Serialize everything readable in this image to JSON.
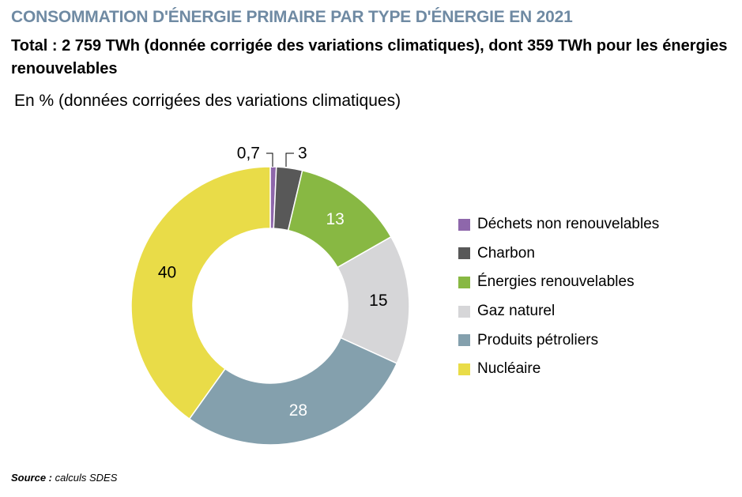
{
  "header": {
    "title": "CONSOMMATION D'ÉNERGIE PRIMAIRE PAR TYPE D'ÉNERGIE EN 2021",
    "subtitle": "Total : 2 759 TWh (donnée corrigée des variations climatiques), dont 359 TWh pour les énergies renouvelables",
    "unit_note": "En % (données corrigées des variations climatiques)"
  },
  "colors": {
    "title": "#6f8aa3",
    "ring_gap": "#ffffff",
    "leader_line": "#000000"
  },
  "chart_data": {
    "type": "pie",
    "variant": "donut",
    "title": "CONSOMMATION D'ÉNERGIE PRIMAIRE PAR TYPE D'ÉNERGIE EN 2021",
    "subtitle": "Total : 2 759 TWh (donnée corrigée des variations climatiques), dont 359 TWh pour les énergies renouvelables",
    "unit": "En % (données corrigées des variations climatiques)",
    "legend_position": "right",
    "start": "top, clockwise",
    "slices": [
      {
        "name": "Déchets non renouvelables",
        "value": 0.7,
        "label": "0,7",
        "color": "#8e67ab",
        "label_color": "#000000",
        "label_placement": "outside"
      },
      {
        "name": "Charbon",
        "value": 3,
        "label": "3",
        "color": "#585858",
        "label_color": "#000000",
        "label_placement": "outside"
      },
      {
        "name": "Énergies renouvelables",
        "value": 13,
        "label": "13",
        "color": "#88b843",
        "label_color": "#ffffff",
        "label_placement": "inside"
      },
      {
        "name": "Gaz naturel",
        "value": 15,
        "label": "15",
        "color": "#d6d6d8",
        "label_color": "#000000",
        "label_placement": "inside"
      },
      {
        "name": "Produits pétroliers",
        "value": 28,
        "label": "28",
        "color": "#84a0ad",
        "label_color": "#ffffff",
        "label_placement": "inside"
      },
      {
        "name": "Nucléaire",
        "value": 40,
        "label": "40",
        "color": "#e9dc48",
        "label_color": "#000000",
        "label_placement": "inside"
      }
    ]
  },
  "footer": {
    "source_label": "Source :",
    "source_text": "calculs SDES"
  }
}
